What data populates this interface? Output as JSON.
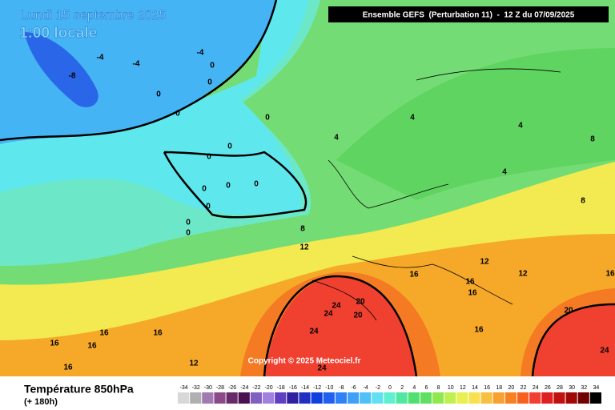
{
  "header": {
    "title": "Lundi 15 septembre 2025",
    "subtitle": "1:00 locale",
    "model": "Ensemble GEFS  (Perturbation 11)  -  12 Z du 07/09/2025"
  },
  "map": {
    "copyright": "Copyright © 2025 Meteociel.fr",
    "contour_labels": [
      -4,
      -4,
      -8,
      -4,
      0,
      0,
      0,
      0,
      0,
      0,
      0,
      0,
      0,
      0,
      0,
      0,
      0,
      4,
      4,
      4,
      4,
      8,
      8,
      8,
      12,
      12,
      12,
      12,
      16,
      16,
      16,
      16,
      16,
      16,
      16,
      16,
      16,
      20,
      20,
      20,
      24,
      24,
      24,
      24,
      24,
      16
    ]
  },
  "legend": {
    "title": "Température 850hPa",
    "lead_time": "(+ 180h)",
    "scale": {
      "values": [
        -34,
        -32,
        -30,
        -28,
        -26,
        -24,
        -22,
        -20,
        -18,
        -16,
        -14,
        -12,
        -10,
        -8,
        -6,
        -4,
        -2,
        0,
        2,
        4,
        6,
        8,
        10,
        12,
        14,
        16,
        18,
        20,
        22,
        24,
        26,
        28,
        30,
        32,
        34
      ],
      "colors": [
        "#d8d8d8",
        "#b0b0b0",
        "#a07ab0",
        "#8a4a8a",
        "#6a2a6a",
        "#4a1050",
        "#8060c0",
        "#a080e0",
        "#6040c0",
        "#3020a0",
        "#2030c0",
        "#1040e0",
        "#2060f0",
        "#3080f8",
        "#40a0f8",
        "#50c0f8",
        "#60e0f0",
        "#60f0d0",
        "#50e8a0",
        "#50e070",
        "#60e060",
        "#90e850",
        "#c0f050",
        "#e8f050",
        "#f8e050",
        "#f8c040",
        "#f8a030",
        "#f88020",
        "#f86020",
        "#f04030",
        "#e02020",
        "#c01010",
        "#a00808",
        "#700000",
        "#000000"
      ]
    }
  }
}
